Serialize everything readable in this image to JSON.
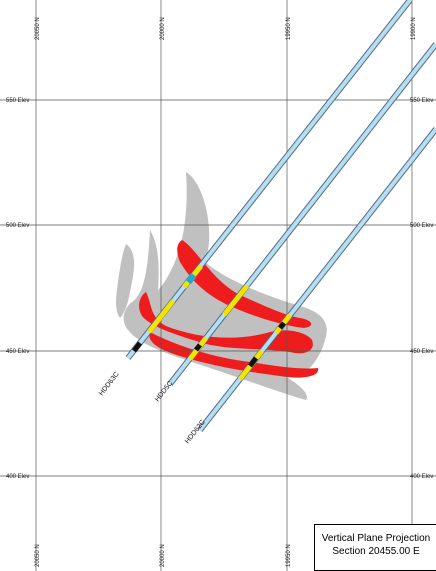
{
  "section": {
    "title_line1": "Vertical Plane Projection",
    "title_line2": "Section 20455.00 E"
  },
  "grid": {
    "northings": [
      {
        "label_top": "20050 N",
        "label_bottom": "20050 N"
      },
      {
        "label_top": "20000 N",
        "label_bottom": "20000 N"
      },
      {
        "label_top": "19950 N",
        "label_bottom": "19950 N"
      },
      {
        "label_top": "19900 N",
        "label_bottom": ""
      }
    ],
    "elevations": [
      {
        "label_left": "550 Elev",
        "label_right": "550 Elev"
      },
      {
        "label_left": "500 Elev",
        "label_right": "500 Elev"
      },
      {
        "label_left": "450 Elev",
        "label_right": "450 Elev"
      },
      {
        "label_left": "400 Elev",
        "label_right": "400 Elev"
      }
    ]
  },
  "drillholes": [
    {
      "name": "HDD63C"
    },
    {
      "name": "HDD5C"
    },
    {
      "name": "HDD62C"
    }
  ],
  "colors": {
    "grid": "#555555",
    "halo": "#c0c0c0",
    "ore": "#ee1c1c",
    "trace_fill": "#b9dcf0",
    "trace_edge": "#4a6f85",
    "assay": "#f2e400",
    "background": "#ffffff"
  }
}
